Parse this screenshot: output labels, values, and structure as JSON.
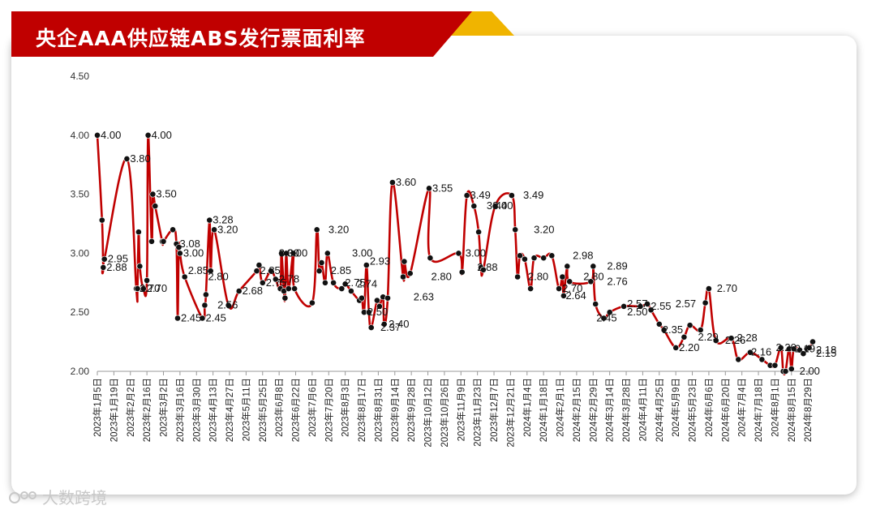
{
  "title": "央企AAA供应链ABS发行票面利率",
  "watermark": "大数跨境",
  "colors": {
    "line": "#c00000",
    "title_red": "#c00000",
    "title_gold": "#f0b400",
    "marker": "#111111"
  },
  "chart_data": {
    "type": "line",
    "title": "央企AAA供应链ABS发行票面利率",
    "ylim": [
      2.0,
      4.5
    ],
    "y_ticks": [
      "2.00",
      "2.50",
      "3.00",
      "3.50",
      "4.00",
      "4.50"
    ],
    "x_ticks": [
      "2023年1月5日",
      "2023年1月19日",
      "2023年2月2日",
      "2023年2月16日",
      "2023年3月2日",
      "2023年3月16日",
      "2023年3月30日",
      "2023年4月13日",
      "2023年4月27日",
      "2023年5月11日",
      "2023年5月25日",
      "2023年6月8日",
      "2023年6月22日",
      "2023年7月6日",
      "2023年7月20日",
      "2023年8月3日",
      "2023年8月17日",
      "2023年8月31日",
      "2023年9月14日",
      "2023年9月28日",
      "2023年10月12日",
      "2023年10月26日",
      "2023年11月9日",
      "2023年11月23日",
      "2023年12月7日",
      "2023年12月21日",
      "2024年1月4日",
      "2024年1月18日",
      "2024年2月1日",
      "2024年2月15日",
      "2024年2月29日",
      "2024年3月14日",
      "2024年3月28日",
      "2024年4月11日",
      "2024年4月25日",
      "2024年5月9日",
      "2024年5月23日",
      "2024年6月6日",
      "2024年6月20日",
      "2024年7月4日",
      "2024年7月18日",
      "2024年8月1日",
      "2024年8月15日",
      "2024年8月29日"
    ],
    "series": [
      {
        "x": [
          "2023-01-05",
          "2023-01-09",
          "2023-01-10",
          "2023-01-11",
          "2023-01-30",
          "2023-02-07",
          "2023-02-08",
          "2023-02-09",
          "2023-02-10",
          "2023-02-13",
          "2023-02-16",
          "2023-02-17",
          "2023-02-20",
          "2023-02-21",
          "2023-02-23",
          "2023-03-01",
          "2023-03-02",
          "2023-03-10",
          "2023-03-13",
          "2023-03-14",
          "2023-03-15",
          "2023-03-16",
          "2023-03-20",
          "2023-04-04",
          "2023-04-06",
          "2023-04-07",
          "2023-04-10",
          "2023-04-11",
          "2023-04-14",
          "2023-04-26",
          "2023-05-05",
          "2023-05-20",
          "2023-05-22",
          "2023-05-25",
          "2023-06-01",
          "2023-06-05",
          "2023-06-09",
          "2023-06-10",
          "2023-06-12",
          "2023-06-13",
          "2023-06-14",
          "2023-06-16",
          "2023-06-20",
          "2023-06-21",
          "2023-07-06",
          "2023-07-10",
          "2023-07-12",
          "2023-07-14",
          "2023-07-17",
          "2023-07-19",
          "2023-07-24",
          "2023-07-31",
          "2023-08-03",
          "2023-08-08",
          "2023-08-15",
          "2023-08-17",
          "2023-08-19",
          "2023-08-21",
          "2023-08-23",
          "2023-08-25",
          "2023-08-30",
          "2023-09-01",
          "2023-09-04",
          "2023-09-05",
          "2023-09-08",
          "2023-09-12",
          "2023-09-21",
          "2023-09-22",
          "2023-09-27",
          "2023-10-13",
          "2023-10-14",
          "2023-11-07",
          "2023-11-10",
          "2023-11-14",
          "2023-11-20",
          "2023-11-24",
          "2023-11-26",
          "2023-11-28",
          "2023-12-08",
          "2023-12-22",
          "2023-12-25",
          "2023-12-27",
          "2023-12-29",
          "2024-01-02",
          "2024-01-07",
          "2024-01-10",
          "2024-01-18",
          "2024-01-25",
          "2024-01-31",
          "2024-02-03",
          "2024-02-04",
          "2024-02-07",
          "2024-02-09",
          "2024-02-27",
          "2024-02-29",
          "2024-03-02",
          "2024-03-09",
          "2024-03-14",
          "2024-03-26",
          "2024-04-09",
          "2024-04-15",
          "2024-04-18",
          "2024-04-25",
          "2024-04-29",
          "2024-05-09",
          "2024-05-16",
          "2024-05-21",
          "2024-05-30",
          "2024-06-03",
          "2024-06-06",
          "2024-06-12",
          "2024-06-25",
          "2024-07-01",
          "2024-07-11",
          "2024-07-21",
          "2024-07-28",
          "2024-08-01",
          "2024-08-06",
          "2024-08-08",
          "2024-08-10",
          "2024-08-13",
          "2024-08-15",
          "2024-08-17",
          "2024-08-22",
          "2024-08-25",
          "2024-08-28",
          "2024-08-30",
          "2024-09-02"
        ],
        "values": [
          4.0,
          3.28,
          2.88,
          2.95,
          3.8,
          2.7,
          2.7,
          3.18,
          2.89,
          2.7,
          2.77,
          4.0,
          3.1,
          3.5,
          3.4,
          3.1,
          3.1,
          3.2,
          3.08,
          2.45,
          3.05,
          3.0,
          2.8,
          2.45,
          2.56,
          2.65,
          3.28,
          2.85,
          3.2,
          2.56,
          2.68,
          2.85,
          2.9,
          2.75,
          2.85,
          2.78,
          2.7,
          3.0,
          2.68,
          2.62,
          3.0,
          2.7,
          3.0,
          2.7,
          2.58,
          3.2,
          2.85,
          2.92,
          2.75,
          3.0,
          2.75,
          2.7,
          2.74,
          2.68,
          2.6,
          2.62,
          2.5,
          2.9,
          2.5,
          2.37,
          2.6,
          2.55,
          2.63,
          2.4,
          2.62,
          3.6,
          2.8,
          2.93,
          2.83,
          3.55,
          2.96,
          3.0,
          2.84,
          3.49,
          3.4,
          3.18,
          2.88,
          2.86,
          3.4,
          3.49,
          3.2,
          2.8,
          2.98,
          2.95,
          2.7,
          2.96,
          2.96,
          2.98,
          2.7,
          2.8,
          2.64,
          2.89,
          2.76,
          2.76,
          2.89,
          2.57,
          2.45,
          2.5,
          2.55,
          2.55,
          2.57,
          2.52,
          2.4,
          2.35,
          2.2,
          2.29,
          2.39,
          2.35,
          2.58,
          2.7,
          2.26,
          2.28,
          2.1,
          2.16,
          2.1,
          2.05,
          2.05,
          2.2,
          2.0,
          2.0,
          2.19,
          2.02,
          2.19,
          2.18,
          2.15,
          2.19,
          2.2,
          2.25
        ]
      }
    ],
    "data_labels": [
      {
        "t": "4.00",
        "x": "2023-01-05",
        "v": 4.0
      },
      {
        "t": "2.88",
        "x": "2023-01-10",
        "v": 2.88
      },
      {
        "t": "2.95",
        "x": "2023-01-11",
        "v": 2.95
      },
      {
        "t": "3.80",
        "x": "2023-01-30",
        "v": 3.8
      },
      {
        "t": "2.70",
        "x": "2023-02-07",
        "v": 2.7
      },
      {
        "t": "2.70",
        "x": "2023-02-13",
        "v": 2.7
      },
      {
        "t": "4.00",
        "x": "2023-02-17",
        "v": 4.0
      },
      {
        "t": "3.50",
        "x": "2023-02-21",
        "v": 3.5
      },
      {
        "t": "3.08",
        "x": "2023-03-13",
        "v": 3.08
      },
      {
        "t": "2.45",
        "x": "2023-03-14",
        "v": 2.45
      },
      {
        "t": "3.00",
        "x": "2023-03-16",
        "v": 3.0
      },
      {
        "t": "2.85",
        "x": "2023-03-20",
        "v": 2.85
      },
      {
        "t": "2.45",
        "x": "2023-04-04",
        "v": 2.45
      },
      {
        "t": "2.80",
        "x": "2023-04-06",
        "v": 2.8
      },
      {
        "t": "3.28",
        "x": "2023-04-10",
        "v": 3.28
      },
      {
        "t": "2.56",
        "x": "2023-04-14",
        "v": 2.56
      },
      {
        "t": "3.20",
        "x": "2023-04-14",
        "v": 3.2
      },
      {
        "t": "2.68",
        "x": "2023-05-05",
        "v": 2.68
      },
      {
        "t": "2.85",
        "x": "2023-05-20",
        "v": 2.85
      },
      {
        "t": "2.75",
        "x": "2023-05-25",
        "v": 2.75
      },
      {
        "t": "3.00",
        "x": "2023-06-05",
        "v": 3.0
      },
      {
        "t": "2.78",
        "x": "2023-06-05",
        "v": 2.78
      },
      {
        "t": "3.00",
        "x": "2023-06-12",
        "v": 3.0
      },
      {
        "t": "3.20",
        "x": "2023-07-17",
        "v": 3.2
      },
      {
        "t": "2.85",
        "x": "2023-07-19",
        "v": 2.85
      },
      {
        "t": "2.75",
        "x": "2023-07-31",
        "v": 2.75
      },
      {
        "t": "3.00",
        "x": "2023-08-06",
        "v": 3.0
      },
      {
        "t": "2.74",
        "x": "2023-08-10",
        "v": 2.74
      },
      {
        "t": "2.93",
        "x": "2023-08-21",
        "v": 2.93
      },
      {
        "t": "2.50",
        "x": "2023-08-19",
        "v": 2.5
      },
      {
        "t": "2.37",
        "x": "2023-08-30",
        "v": 2.37
      },
      {
        "t": "2.40",
        "x": "2023-09-06",
        "v": 2.4
      },
      {
        "t": "3.60",
        "x": "2023-09-12",
        "v": 3.6
      },
      {
        "t": "2.63",
        "x": "2023-09-27",
        "v": 2.63
      },
      {
        "t": "2.80",
        "x": "2023-10-12",
        "v": 2.8
      },
      {
        "t": "3.55",
        "x": "2023-10-13",
        "v": 3.55
      },
      {
        "t": "3.00",
        "x": "2023-11-10",
        "v": 3.0
      },
      {
        "t": "3.49",
        "x": "2023-11-14",
        "v": 3.49
      },
      {
        "t": "2.88",
        "x": "2023-11-20",
        "v": 2.88
      },
      {
        "t": "3.40",
        "x": "2023-11-28",
        "v": 3.4
      },
      {
        "t": "3.40",
        "x": "2023-12-03",
        "v": 3.4
      },
      {
        "t": "3.49",
        "x": "2023-12-29",
        "v": 3.49
      },
      {
        "t": "2.80",
        "x": "2024-01-02",
        "v": 2.8
      },
      {
        "t": "3.20",
        "x": "2024-01-07",
        "v": 3.2
      },
      {
        "t": "2.70",
        "x": "2024-01-31",
        "v": 2.7
      },
      {
        "t": "2.64",
        "x": "2024-02-03",
        "v": 2.64
      },
      {
        "t": "2.98",
        "x": "2024-02-09",
        "v": 2.98
      },
      {
        "t": "2.80",
        "x": "2024-02-18",
        "v": 2.8
      },
      {
        "t": "2.89",
        "x": "2024-03-09",
        "v": 2.89
      },
      {
        "t": "2.76",
        "x": "2024-03-09",
        "v": 2.76
      },
      {
        "t": "2.45",
        "x": "2024-02-29",
        "v": 2.45
      },
      {
        "t": "2.57",
        "x": "2024-03-26",
        "v": 2.57
      },
      {
        "t": "2.50",
        "x": "2024-03-26",
        "v": 2.5
      },
      {
        "t": "2.55",
        "x": "2024-04-15",
        "v": 2.55
      },
      {
        "t": "2.35",
        "x": "2024-04-25",
        "v": 2.35
      },
      {
        "t": "2.57",
        "x": "2024-05-06",
        "v": 2.57
      },
      {
        "t": "2.20",
        "x": "2024-05-09",
        "v": 2.2
      },
      {
        "t": "2.29",
        "x": "2024-05-25",
        "v": 2.29
      },
      {
        "t": "2.70",
        "x": "2024-06-10",
        "v": 2.7
      },
      {
        "t": "2.26",
        "x": "2024-06-17",
        "v": 2.26
      },
      {
        "t": "2.28",
        "x": "2024-06-27",
        "v": 2.28
      },
      {
        "t": "2.16",
        "x": "2024-07-09",
        "v": 2.16
      },
      {
        "t": "2.20",
        "x": "2024-07-30",
        "v": 2.2
      },
      {
        "t": "2.19",
        "x": "2024-08-15",
        "v": 2.19
      },
      {
        "t": "2.00",
        "x": "2024-08-19",
        "v": 2.0
      },
      {
        "t": "2.18",
        "x": "2024-09-02",
        "v": 2.18
      },
      {
        "t": "2.15",
        "x": "2024-09-02",
        "v": 2.15
      }
    ]
  }
}
